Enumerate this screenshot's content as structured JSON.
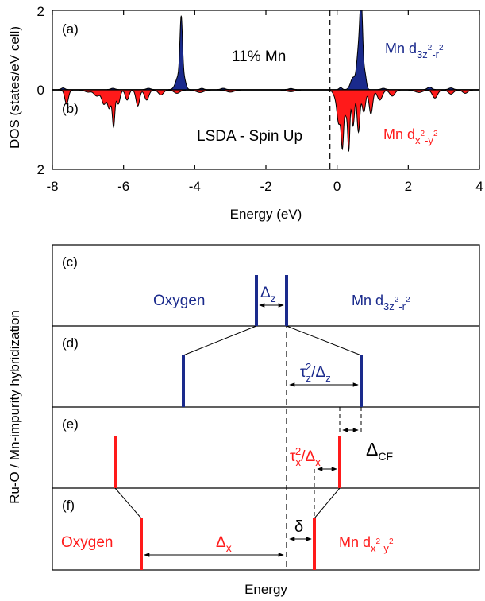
{
  "colors": {
    "blue": "#1a2a8c",
    "red": "#ff1a1a",
    "black": "#000000"
  },
  "chart_data": [
    {
      "type": "area",
      "panel": "a",
      "panel_label": "(a)",
      "annotation": "11% Mn",
      "series_label": {
        "base": "Mn d",
        "sub_main": "3z",
        "sup": "2",
        "sub_tail": "-r",
        "sup2": "2"
      },
      "color": "#1a2a8c",
      "xlim": [
        -8,
        4
      ],
      "ylim": [
        0,
        2
      ],
      "yticks": [
        "0",
        "2"
      ],
      "peaks": [
        {
          "x": -7.7,
          "h": 0.04,
          "w": 0.05
        },
        {
          "x": -6.3,
          "h": 0.03,
          "w": 0.06
        },
        {
          "x": -5.3,
          "h": 0.03,
          "w": 0.06
        },
        {
          "x": -4.45,
          "h": 0.35,
          "w": 0.08
        },
        {
          "x": -4.38,
          "h": 1.55,
          "w": 0.035
        },
        {
          "x": -4.3,
          "h": 0.25,
          "w": 0.05
        },
        {
          "x": -3.8,
          "h": 0.03,
          "w": 0.05
        },
        {
          "x": -3.2,
          "h": 0.03,
          "w": 0.06
        },
        {
          "x": -1.3,
          "h": 0.025,
          "w": 0.06
        },
        {
          "x": 0.1,
          "h": 0.05,
          "w": 0.04
        },
        {
          "x": 0.45,
          "h": 0.3,
          "w": 0.07
        },
        {
          "x": 0.6,
          "h": 0.9,
          "w": 0.05
        },
        {
          "x": 0.68,
          "h": 2.05,
          "w": 0.04
        },
        {
          "x": 0.78,
          "h": 0.4,
          "w": 0.04
        },
        {
          "x": 1.3,
          "h": 0.03,
          "w": 0.06
        },
        {
          "x": 2.6,
          "h": 0.06,
          "w": 0.06
        },
        {
          "x": 3.2,
          "h": 0.04,
          "w": 0.06
        }
      ]
    },
    {
      "type": "area",
      "panel": "b",
      "panel_label": "(b)",
      "annotation": "LSDA - Spin Up",
      "series_label": {
        "base": "Mn d",
        "sub_main": "x",
        "sup": "2",
        "sub_tail": "-y",
        "sup2": "2"
      },
      "color": "#ff1a1a",
      "xlim": [
        -8,
        4
      ],
      "ylim": [
        0,
        2
      ],
      "yticks": [
        "2"
      ],
      "peaks": [
        {
          "x": -7.6,
          "h": 0.35,
          "w": 0.05
        },
        {
          "x": -7.0,
          "h": 0.05,
          "w": 0.08
        },
        {
          "x": -6.75,
          "h": 0.15,
          "w": 0.08
        },
        {
          "x": -6.55,
          "h": 0.35,
          "w": 0.06
        },
        {
          "x": -6.4,
          "h": 0.45,
          "w": 0.05
        },
        {
          "x": -6.28,
          "h": 0.9,
          "w": 0.035
        },
        {
          "x": -6.15,
          "h": 0.35,
          "w": 0.05
        },
        {
          "x": -5.9,
          "h": 0.25,
          "w": 0.05
        },
        {
          "x": -5.6,
          "h": 0.4,
          "w": 0.05
        },
        {
          "x": -5.35,
          "h": 0.25,
          "w": 0.06
        },
        {
          "x": -4.95,
          "h": 0.12,
          "w": 0.07
        },
        {
          "x": -4.5,
          "h": 0.08,
          "w": 0.08
        },
        {
          "x": -3.85,
          "h": 0.06,
          "w": 0.1
        },
        {
          "x": -3.0,
          "h": 0.05,
          "w": 0.1
        },
        {
          "x": -1.3,
          "h": 0.04,
          "w": 0.1
        },
        {
          "x": -0.05,
          "h": 0.15,
          "w": 0.06
        },
        {
          "x": 0.05,
          "h": 0.8,
          "w": 0.05
        },
        {
          "x": 0.15,
          "h": 1.35,
          "w": 0.035
        },
        {
          "x": 0.25,
          "h": 0.6,
          "w": 0.04
        },
        {
          "x": 0.33,
          "h": 1.45,
          "w": 0.03
        },
        {
          "x": 0.45,
          "h": 0.9,
          "w": 0.04
        },
        {
          "x": 0.6,
          "h": 1.05,
          "w": 0.04
        },
        {
          "x": 0.75,
          "h": 0.55,
          "w": 0.05
        },
        {
          "x": 0.95,
          "h": 0.6,
          "w": 0.05
        },
        {
          "x": 1.2,
          "h": 0.25,
          "w": 0.07
        },
        {
          "x": 1.55,
          "h": 0.15,
          "w": 0.07
        },
        {
          "x": 2.3,
          "h": 0.06,
          "w": 0.1
        },
        {
          "x": 2.75,
          "h": 0.2,
          "w": 0.07
        },
        {
          "x": 3.2,
          "h": 0.1,
          "w": 0.07
        },
        {
          "x": 3.6,
          "h": 0.08,
          "w": 0.07
        }
      ]
    }
  ],
  "dos_axes": {
    "xlabel": "Energy (eV)",
    "ylabel": "DOS  (states/eV cell)",
    "xticks": [
      "-8",
      "-6",
      "-4",
      "-2",
      "0",
      "2",
      "4"
    ],
    "xtick_values": [
      -8,
      -6,
      -4,
      -2,
      0,
      2,
      4
    ],
    "fermi_x": -0.2
  },
  "diagram": {
    "ylabel": "Ru-O / Mn-impurity hybridization",
    "xlabel": "Energy",
    "panels": [
      {
        "label": "(c)"
      },
      {
        "label": "(d)"
      },
      {
        "label": "(e)"
      },
      {
        "label": "(f)"
      }
    ],
    "c": {
      "oxygen": "Oxygen",
      "delta_z": {
        "sym": "Δ",
        "sub": "z"
      },
      "mn": {
        "base": "Mn d",
        "sub_main": "3z",
        "sup": "2",
        "sub_tail": "-r",
        "sup2": "2"
      }
    },
    "d": {
      "tau": {
        "sym": "τ",
        "sub": "z",
        "sup": "2",
        "slash": "/Δ",
        "sub2": "z"
      }
    },
    "e": {
      "tau": {
        "sym": "τ",
        "sub": "x",
        "sup": "2",
        "slash": "/Δ",
        "sub2": "x"
      },
      "delta_cf": {
        "sym": "Δ",
        "sub": "CF"
      }
    },
    "f": {
      "oxygen": "Oxygen",
      "delta_x": {
        "sym": "Δ",
        "sub": "x"
      },
      "delta": "δ",
      "mn": {
        "base": "Mn d",
        "sub_main": "x",
        "sup": "2",
        "sub_tail": "-y",
        "sup2": "2"
      }
    }
  }
}
